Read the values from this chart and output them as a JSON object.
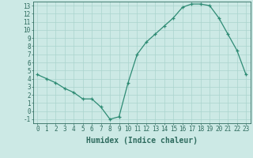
{
  "x": [
    0,
    1,
    2,
    3,
    4,
    5,
    6,
    7,
    8,
    9,
    10,
    11,
    12,
    13,
    14,
    15,
    16,
    17,
    18,
    19,
    20,
    21,
    22,
    23
  ],
  "y": [
    4.5,
    4.0,
    3.5,
    2.8,
    2.3,
    1.5,
    1.5,
    0.5,
    -1.0,
    -0.7,
    3.5,
    7.0,
    8.5,
    9.5,
    10.5,
    11.5,
    12.8,
    13.2,
    13.2,
    13.0,
    11.5,
    9.5,
    7.5,
    4.5
  ],
  "line_color": "#2e8b74",
  "marker": "+",
  "marker_size": 3,
  "line_width": 0.9,
  "bg_color": "#cce9e5",
  "grid_color": "#aad4ce",
  "xlabel": "Humidex (Indice chaleur)",
  "xlim": [
    -0.5,
    23.5
  ],
  "ylim": [
    -1.5,
    13.5
  ],
  "yticks": [
    -1,
    0,
    1,
    2,
    3,
    4,
    5,
    6,
    7,
    8,
    9,
    10,
    11,
    12,
    13
  ],
  "xticks": [
    0,
    1,
    2,
    3,
    4,
    5,
    6,
    7,
    8,
    9,
    10,
    11,
    12,
    13,
    14,
    15,
    16,
    17,
    18,
    19,
    20,
    21,
    22,
    23
  ],
  "tick_label_fontsize": 5.5,
  "xlabel_fontsize": 7,
  "tick_color": "#2e6b5e",
  "axis_color": "#2e6b5e"
}
